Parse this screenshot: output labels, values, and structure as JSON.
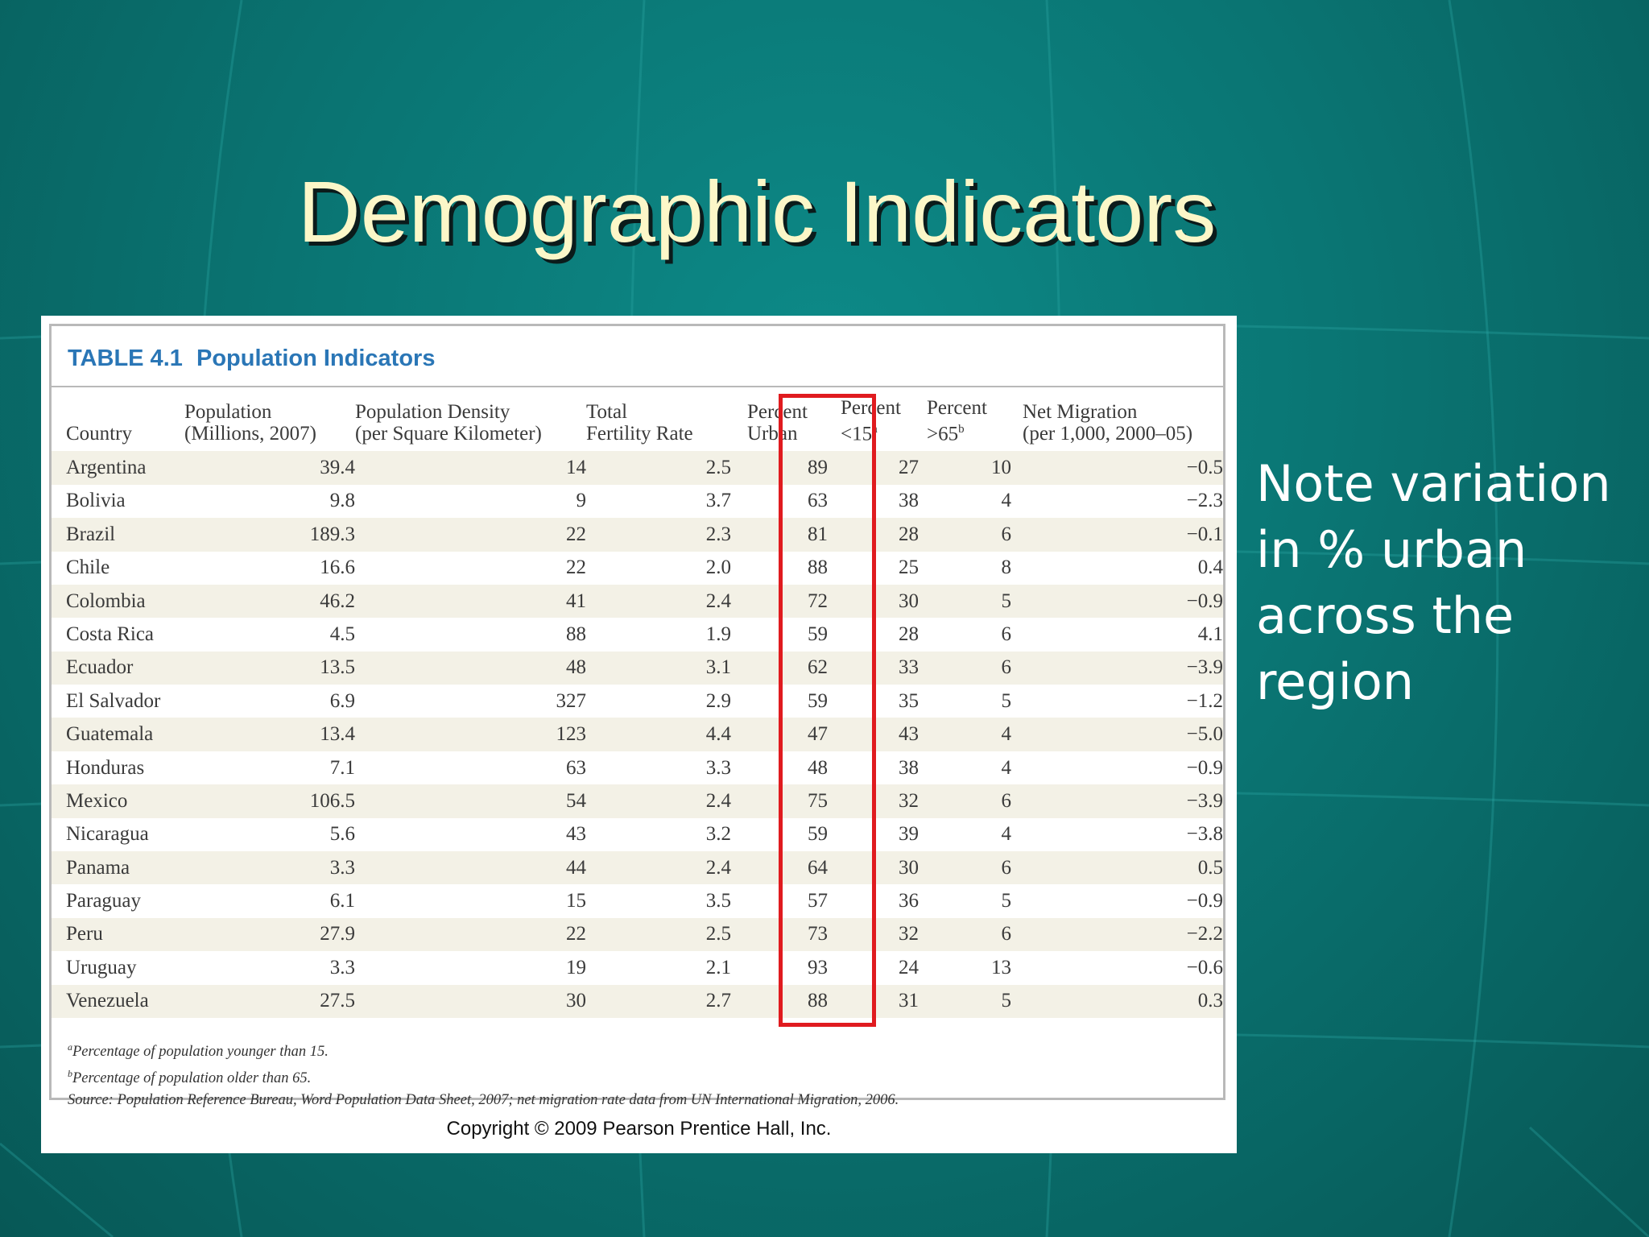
{
  "slide": {
    "title": "Demographic Indicators",
    "note": "Note variation in % urban across the region",
    "colors": {
      "background": "#0a7573",
      "title": "#fcf7c8",
      "highlight": "#e01b1f",
      "caption": "#2a76b6",
      "row_shade": "#f3f1e6"
    }
  },
  "table": {
    "number": "TABLE 4.1",
    "title": "Population Indicators",
    "headers": {
      "country": "Country",
      "population_1": "Population",
      "population_2": "(Millions, 2007)",
      "density_1": "Population Density",
      "density_2": "(per Square Kilometer)",
      "fertility_1": "Total",
      "fertility_2": "Fertility Rate",
      "urban_1": "Percent",
      "urban_2": "Urban",
      "under15_1": "Percent",
      "under15_2": "<15",
      "under15_mark": "a",
      "over65_1": "Percent",
      "over65_2": ">65",
      "over65_mark": "b",
      "migration_1": "Net Migration",
      "migration_2": "(per 1,000, 2000–05)"
    },
    "rows": [
      [
        "Argentina",
        "39.4",
        "14",
        "2.5",
        "89",
        "27",
        "10",
        "−0.5"
      ],
      [
        "Bolivia",
        "9.8",
        "9",
        "3.7",
        "63",
        "38",
        "4",
        "−2.3"
      ],
      [
        "Brazil",
        "189.3",
        "22",
        "2.3",
        "81",
        "28",
        "6",
        "−0.1"
      ],
      [
        "Chile",
        "16.6",
        "22",
        "2.0",
        "88",
        "25",
        "8",
        "0.4"
      ],
      [
        "Colombia",
        "46.2",
        "41",
        "2.4",
        "72",
        "30",
        "5",
        "−0.9"
      ],
      [
        "Costa Rica",
        "4.5",
        "88",
        "1.9",
        "59",
        "28",
        "6",
        "4.1"
      ],
      [
        "Ecuador",
        "13.5",
        "48",
        "3.1",
        "62",
        "33",
        "6",
        "−3.9"
      ],
      [
        "El Salvador",
        "6.9",
        "327",
        "2.9",
        "59",
        "35",
        "5",
        "−1.2"
      ],
      [
        "Guatemala",
        "13.4",
        "123",
        "4.4",
        "47",
        "43",
        "4",
        "−5.0"
      ],
      [
        "Honduras",
        "7.1",
        "63",
        "3.3",
        "48",
        "38",
        "4",
        "−0.9"
      ],
      [
        "Mexico",
        "106.5",
        "54",
        "2.4",
        "75",
        "32",
        "6",
        "−3.9"
      ],
      [
        "Nicaragua",
        "5.6",
        "43",
        "3.2",
        "59",
        "39",
        "4",
        "−3.8"
      ],
      [
        "Panama",
        "3.3",
        "44",
        "2.4",
        "64",
        "30",
        "6",
        "0.5"
      ],
      [
        "Paraguay",
        "6.1",
        "15",
        "3.5",
        "57",
        "36",
        "5",
        "−0.9"
      ],
      [
        "Peru",
        "27.9",
        "22",
        "2.5",
        "73",
        "32",
        "6",
        "−2.2"
      ],
      [
        "Uruguay",
        "3.3",
        "19",
        "2.1",
        "93",
        "24",
        "13",
        "−0.6"
      ],
      [
        "Venezuela",
        "27.5",
        "30",
        "2.7",
        "88",
        "31",
        "5",
        "0.3"
      ]
    ],
    "footnotes": {
      "a_mark": "a",
      "a_text": "Percentage of population younger than 15.",
      "b_mark": "b",
      "b_text": "Percentage of population older than 65.",
      "source": "Source: Population Reference Bureau, Word Population Data Sheet, 2007; net migration rate data from UN International Migration, 2006."
    },
    "copyright": "Copyright © 2009 Pearson Prentice Hall, Inc."
  }
}
